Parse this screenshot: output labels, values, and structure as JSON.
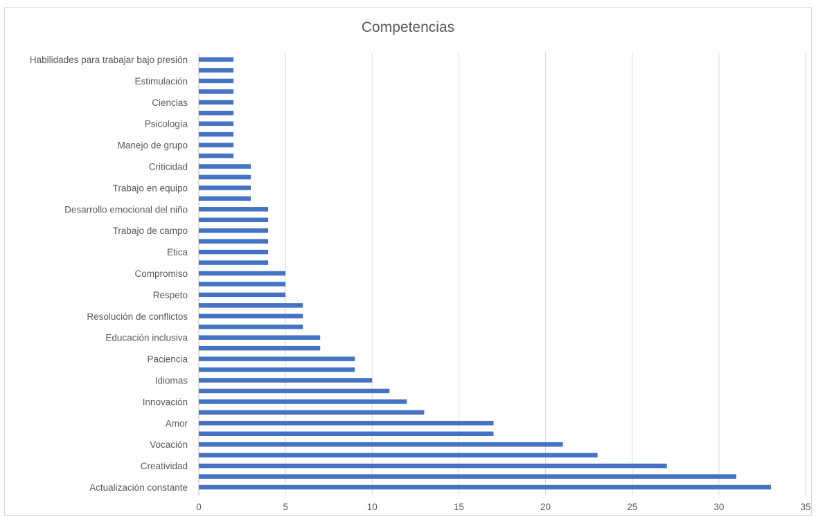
{
  "chart_data": {
    "type": "bar",
    "orientation": "horizontal",
    "title": "Competencias",
    "xlim": [
      0,
      35
    ],
    "x_ticks": [
      "0",
      "5",
      "10",
      "15",
      "20",
      "25",
      "30",
      "35"
    ],
    "grid": true,
    "bar_color": "#4472c4",
    "categories": [
      "Actualización constante",
      "",
      "Creatividad",
      "",
      "Vocación",
      "",
      "Amor",
      "",
      "Innovación",
      "",
      "Idiomas",
      "",
      "Paciencia",
      "",
      "Educación inclusiva",
      "",
      "Resolución de conflictos",
      "",
      "Respeto",
      "",
      "Compromiso",
      "",
      "Etica",
      "",
      "Trabajo de campo",
      "",
      "Desarrollo emocional del niño",
      "",
      "Trabajo en equipo",
      "",
      "Criticidad",
      "",
      "Manejo de grupo",
      "",
      "Psicología",
      "",
      "Ciencias",
      "",
      "Estimulación",
      "",
      "Habilidades para trabajar bajo presión"
    ],
    "values": [
      33,
      31,
      27,
      23,
      21,
      17,
      17,
      13,
      12,
      11,
      10,
      9,
      9,
      7,
      7,
      6,
      6,
      6,
      5,
      5,
      5,
      4,
      4,
      4,
      4,
      4,
      4,
      3,
      3,
      3,
      3,
      2,
      2,
      2,
      2,
      2,
      2,
      2,
      2,
      2,
      2
    ]
  }
}
